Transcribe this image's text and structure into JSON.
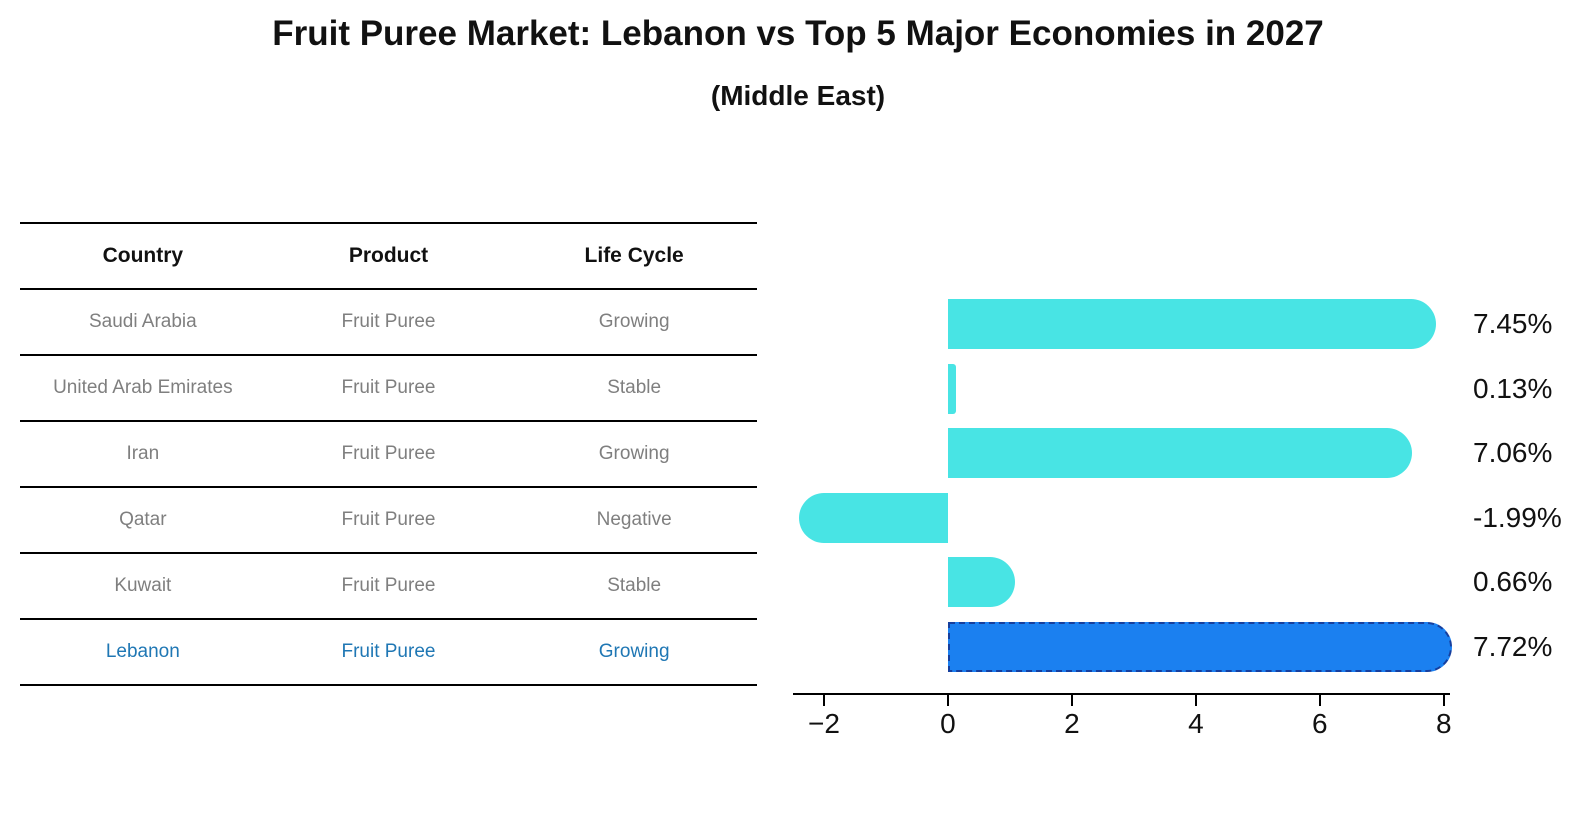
{
  "title": "Fruit Puree Market: Lebanon vs Top 5 Major Economies in 2027",
  "subtitle": "(Middle East)",
  "colors": {
    "bar": "#48e4e4",
    "highlight_bar": "#1b80f0",
    "highlight_bar_border": "#163f9e",
    "table_text": "#7f7f7f",
    "highlight_text": "#1f77b4",
    "axis": "#000000"
  },
  "table": {
    "headers": [
      "Country",
      "Product",
      "Life Cycle"
    ],
    "rows": [
      {
        "country": "Saudi Arabia",
        "product": "Fruit Puree",
        "life_cycle": "Growing",
        "highlight": false
      },
      {
        "country": "United Arab Emirates",
        "product": "Fruit Puree",
        "life_cycle": "Stable",
        "highlight": false
      },
      {
        "country": "Iran",
        "product": "Fruit Puree",
        "life_cycle": "Growing",
        "highlight": false
      },
      {
        "country": "Qatar",
        "product": "Fruit Puree",
        "life_cycle": "Negative",
        "highlight": false
      },
      {
        "country": "Kuwait",
        "product": "Fruit Puree",
        "life_cycle": "Stable",
        "highlight": false
      },
      {
        "country": "Lebanon",
        "product": "Fruit Puree",
        "life_cycle": "Growing",
        "highlight": true
      }
    ]
  },
  "chart_data": {
    "type": "bar",
    "orientation": "horizontal",
    "title": "Fruit Puree Market: Lebanon vs Top 5 Major Economies in 2027",
    "subtitle": "(Middle East)",
    "categories": [
      "Saudi Arabia",
      "United Arab Emirates",
      "Iran",
      "Qatar",
      "Kuwait",
      "Lebanon"
    ],
    "values": [
      7.45,
      0.13,
      7.06,
      -1.99,
      0.66,
      7.72
    ],
    "value_labels": [
      "7.45%",
      "0.13%",
      "7.06%",
      "-1.99%",
      "0.66%",
      "7.72%"
    ],
    "highlight_index": 5,
    "highlight_category": "Lebanon",
    "xlabel": "",
    "ylabel": "",
    "xlim": [
      -2.5,
      8.1
    ],
    "x_ticks": [
      -2,
      0,
      2,
      4,
      6,
      8
    ],
    "x_tick_labels": [
      "−2",
      "0",
      "2",
      "4",
      "6",
      "8"
    ],
    "grid": false,
    "legend": false
  }
}
